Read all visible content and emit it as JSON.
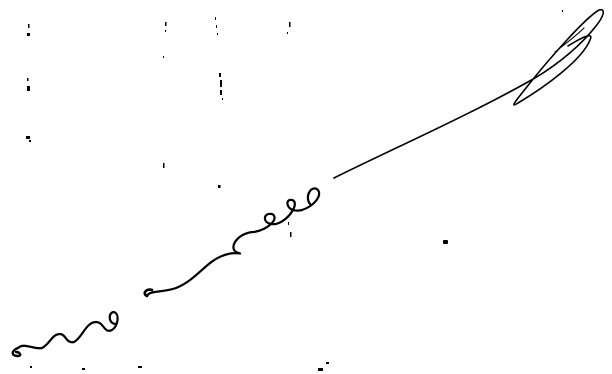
{
  "page": {
    "background": "#ffffff",
    "ink_color": "#000000"
  },
  "signature": {
    "kind": "handwritten-signature",
    "stroke_count": 3
  },
  "speckles": {
    "kind": "scan-noise"
  }
}
